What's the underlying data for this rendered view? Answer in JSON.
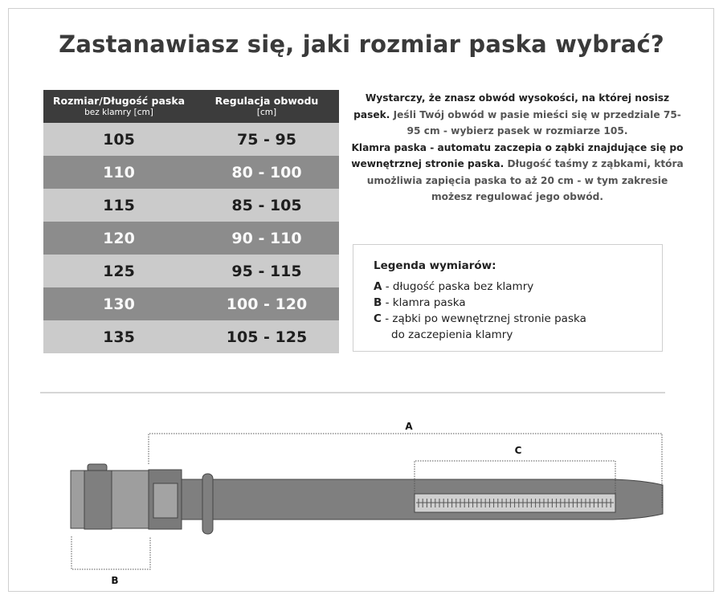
{
  "title": "Zastanawiasz się, jaki rozmiar paska wybrać?",
  "table": {
    "headers": [
      {
        "label": "Rozmiar/Długość paska",
        "sub": "bez klamry [cm]"
      },
      {
        "label": "Regulacja obwodu",
        "sub": "[cm]"
      }
    ],
    "rows": [
      {
        "size": "105",
        "range": "75 - 95"
      },
      {
        "size": "110",
        "range": "80 - 100"
      },
      {
        "size": "115",
        "range": "85 - 105"
      },
      {
        "size": "120",
        "range": "90 - 110"
      },
      {
        "size": "125",
        "range": "95 - 115"
      },
      {
        "size": "130",
        "range": "100 - 120"
      },
      {
        "size": "135",
        "range": "105 - 125"
      }
    ]
  },
  "description": {
    "p1": "Wystarczy, że znasz obwód wysokości, na której nosisz pasek.",
    "p2": " Jeśli Twój obwód w pasie mieści się w przedziale 75-95 cm - wybierz pasek w rozmiarze 105.",
    "p3": "Klamra paska - automatu zaczepia o ząbki znajdujące się po wewnętrznej stronie paska.",
    "p4": " Długość taśmy z ząbkami, która umożliwia zapięcia paska to aż 20 cm - w tym zakresie możesz regulować jego obwód."
  },
  "legend": {
    "title": "Legenda wymiarów:",
    "items": [
      {
        "key": "A",
        "text": " - długość paska bez klamry"
      },
      {
        "key": "B",
        "text": " - klamra paska"
      },
      {
        "key": "C",
        "text": " - ząbki po wewnętrznej stronie paska",
        "cont": "do zaczepienia klamry"
      }
    ]
  },
  "diagram": {
    "label_a": "A",
    "label_b": "B",
    "label_c": "C"
  },
  "colors": {
    "header": "#3c3c3c",
    "row_light": "#cbcbcb",
    "row_dark": "#8c8c8c",
    "belt": "#7f7f7f"
  }
}
